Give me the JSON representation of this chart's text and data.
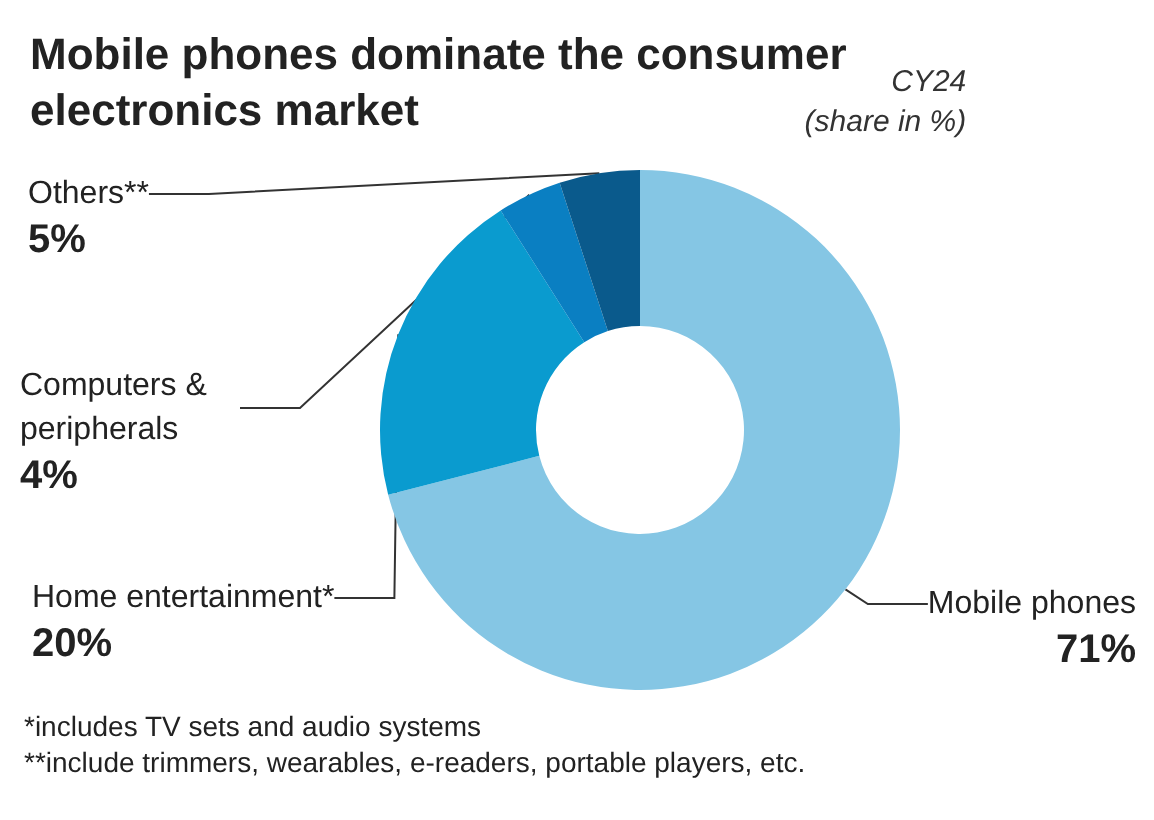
{
  "chart_data": {
    "type": "donut",
    "title": "Mobile phones dominate the consumer electronics market",
    "subtitle": "CY24\n(share in %)",
    "categories": [
      "Mobile phones",
      "Home entertainment*",
      "Computers & peripherals",
      "Others**"
    ],
    "values": [
      71,
      20,
      4,
      5
    ],
    "colors": [
      "#85c6e4",
      "#0a9bcf",
      "#0a7fc2",
      "#0a5a8c"
    ],
    "value_labels": [
      "71%",
      "20%",
      "4%",
      "5%"
    ],
    "annotations": [
      "*includes TV sets and audio systems",
      "**include trimmers, wearables, e-readers, portable players, etc."
    ],
    "legend": false
  }
}
